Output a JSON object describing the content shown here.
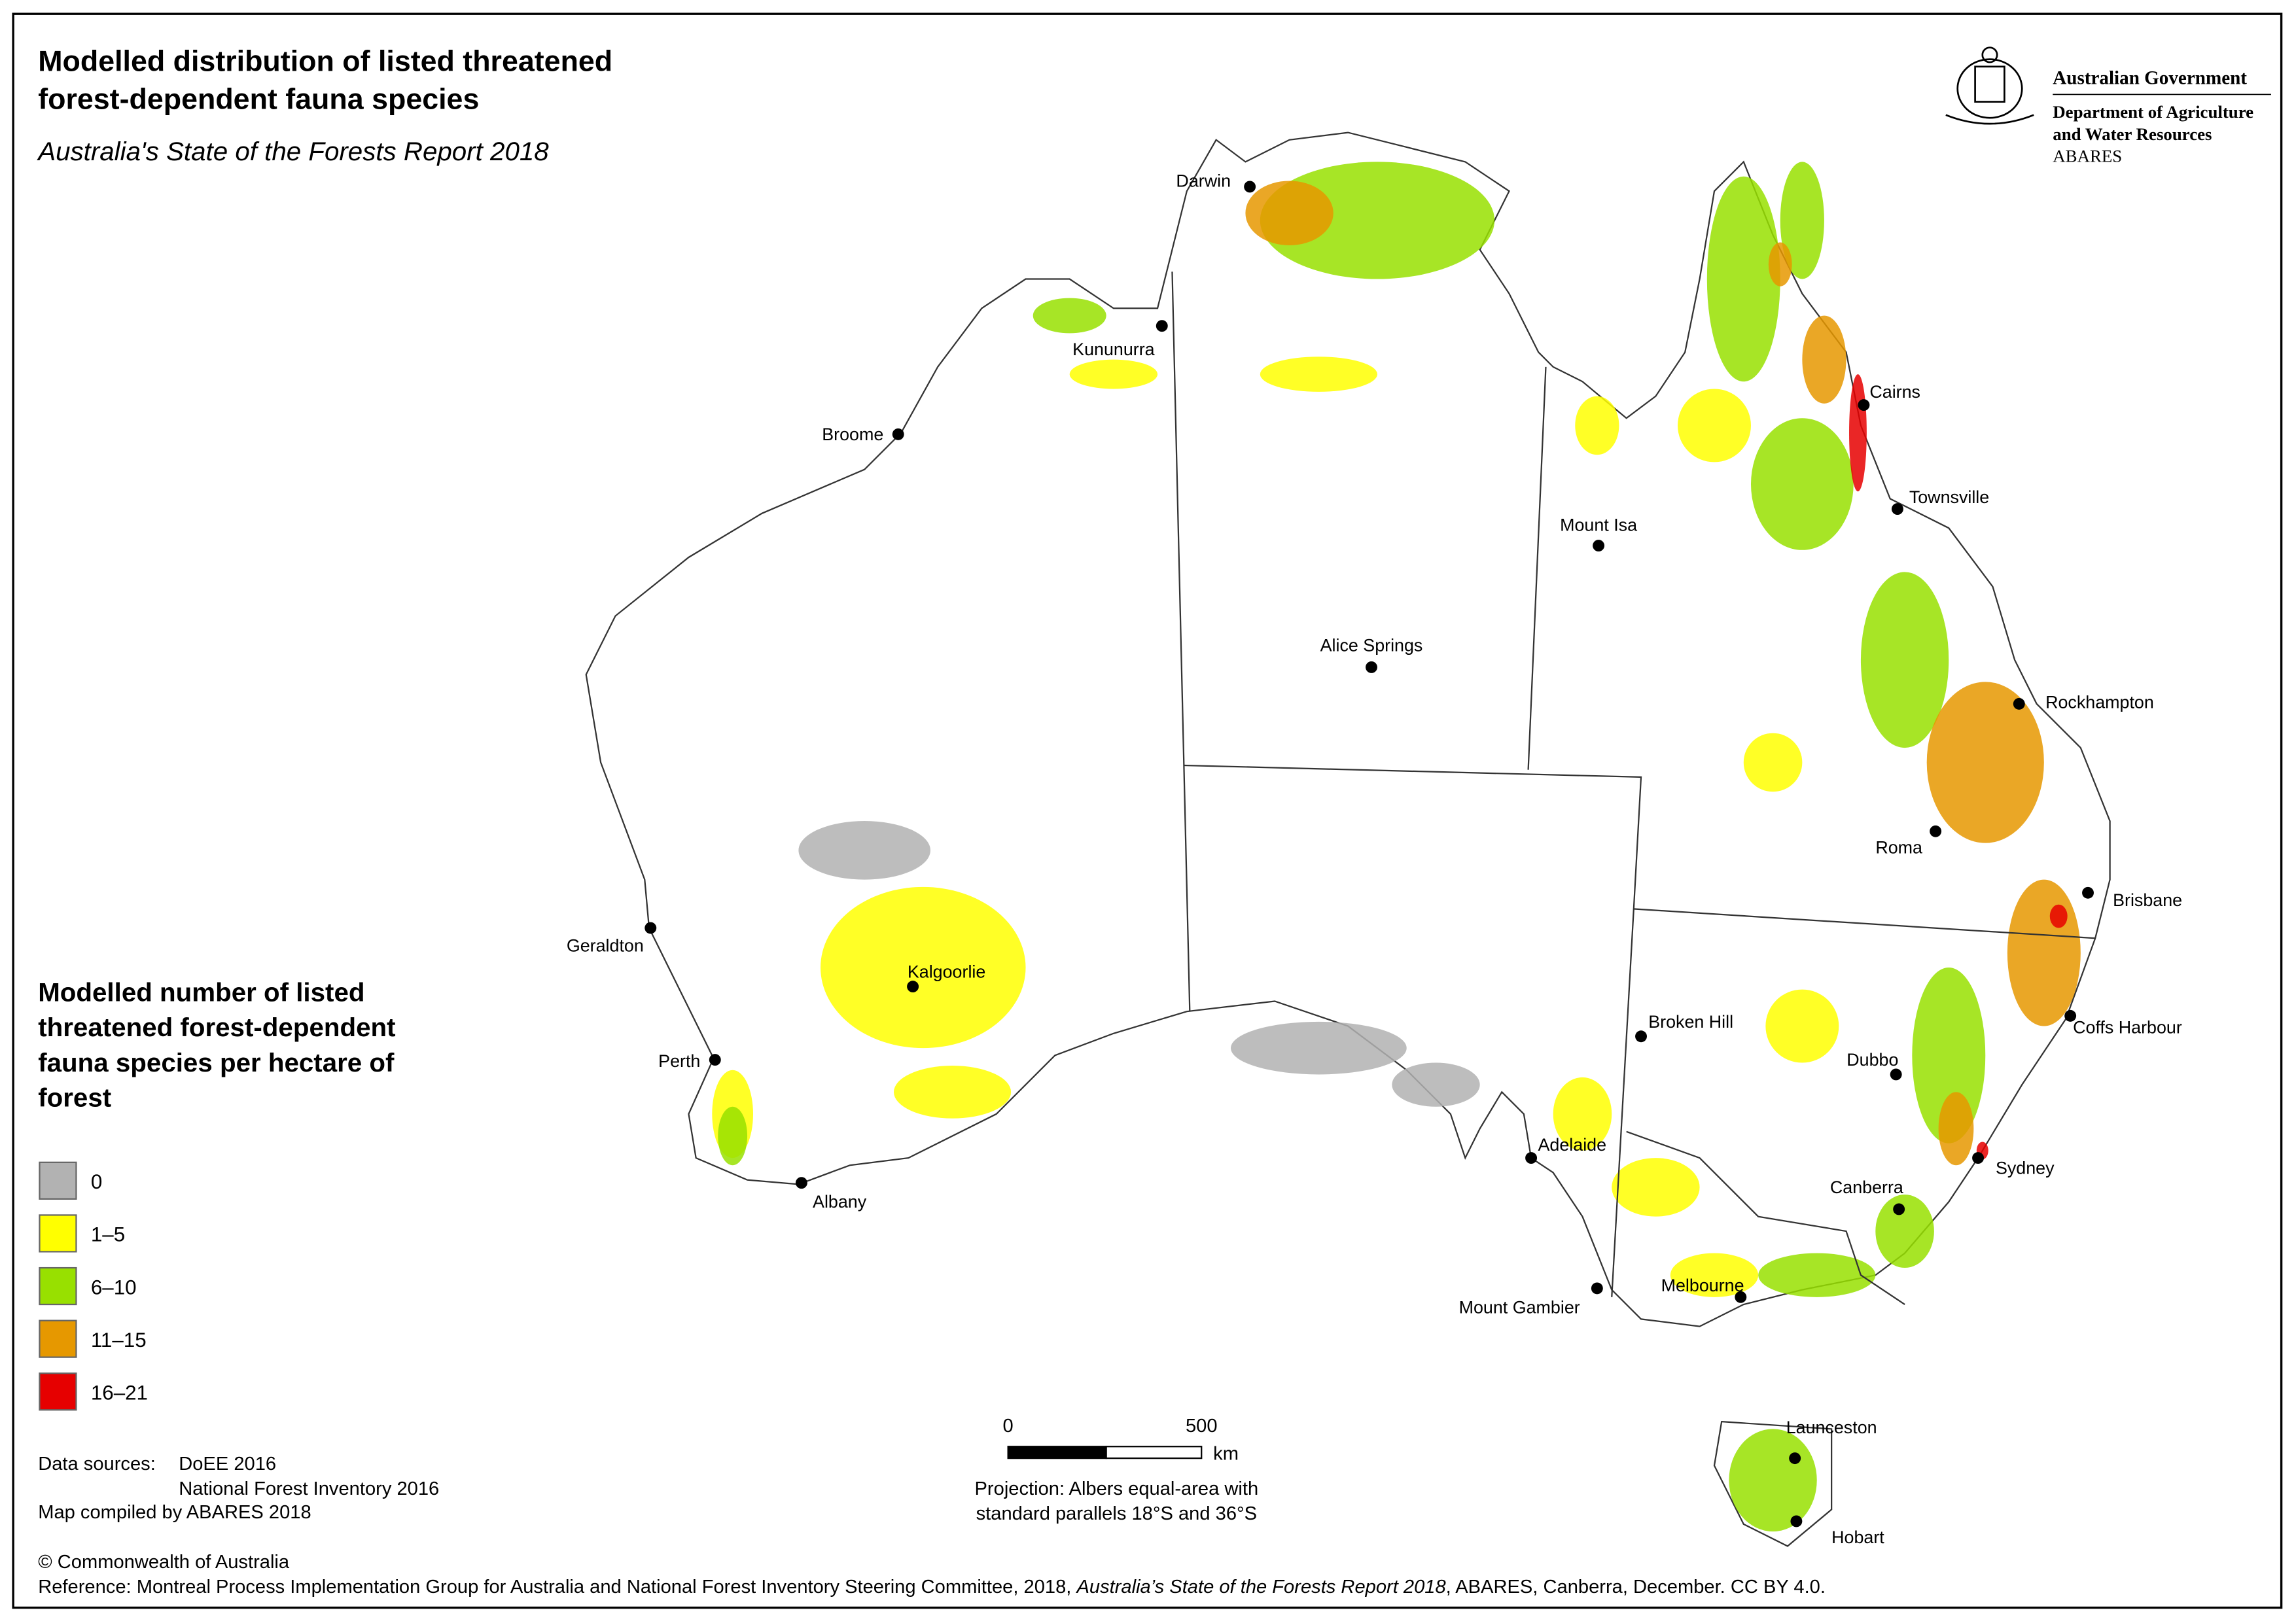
{
  "header": {
    "title_lines": [
      "Modelled distribution of listed threatened",
      "forest-dependent fauna species"
    ],
    "subtitle": "Australia's State of the Forests Report 2018"
  },
  "logo": {
    "lines": [
      "Australian Government",
      "Department of Agriculture",
      "and Water Resources",
      "ABARES"
    ]
  },
  "legend": {
    "title_lines": [
      "Modelled number of listed",
      "threatened forest-dependent",
      "fauna species per hectare of",
      "forest"
    ],
    "items": [
      {
        "label": "0",
        "color": "#b2b2b2"
      },
      {
        "label": "1–5",
        "color": "#ffff00"
      },
      {
        "label": "6–10",
        "color": "#98e000"
      },
      {
        "label": "11–15",
        "color": "#e69800"
      },
      {
        "label": "16–21",
        "color": "#e60000"
      }
    ]
  },
  "cities": [
    "Darwin",
    "Kununurra",
    "Broome",
    "Mount Isa",
    "Cairns",
    "Townsville",
    "Alice Springs",
    "Rockhampton",
    "Roma",
    "Brisbane",
    "Geraldton",
    "Kalgoorlie",
    "Broken Hill",
    "Coffs Harbour",
    "Perth",
    "Dubbo",
    "Adelaide",
    "Sydney",
    "Albany",
    "Canberra",
    "Mount Gambier",
    "Melbourne",
    "Launceston",
    "Hobart"
  ],
  "scale_bar": {
    "start": "0",
    "end": "500",
    "unit": "km"
  },
  "projection": [
    "Projection: Albers equal-area with",
    "standard parallels 18°S and 36°S"
  ],
  "sources": {
    "label": "Data sources:",
    "items": [
      "DoEE 2016",
      "National Forest Inventory 2016"
    ],
    "compiled": "Map compiled by ABARES 2018"
  },
  "footer": {
    "copyright": "© Commonwealth of Australia",
    "reference": [
      "Reference: Montreal Process Implementation Group for Australia and National Forest Inventory Steering Committee, 2018, ",
      "Australia’s State of the Forests Report 2018",
      ", ABARES, Canberra, December. CC BY 4.0."
    ]
  }
}
